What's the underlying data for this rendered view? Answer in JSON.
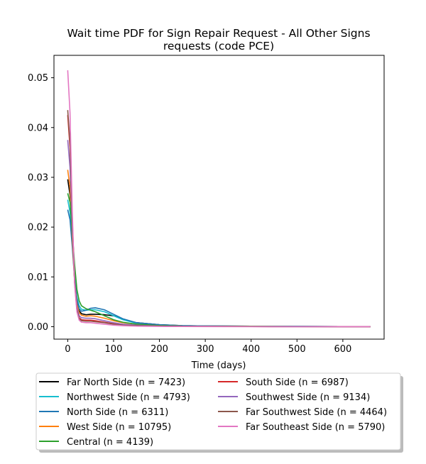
{
  "chart_data": {
    "type": "line",
    "title_line1": "Wait time PDF for Sign Repair Request - All Other Signs",
    "title_line2": "requests (code PCE)",
    "xlabel": "Time (days)",
    "ylabel": "",
    "xlim": [
      -30,
      690
    ],
    "ylim": [
      -0.0025,
      0.0545
    ],
    "x_ticks": [
      0,
      100,
      200,
      300,
      400,
      500,
      600
    ],
    "y_ticks": [
      0.0,
      0.01,
      0.02,
      0.03,
      0.04,
      0.05
    ],
    "x_tick_labels": [
      "0",
      "100",
      "200",
      "300",
      "400",
      "500",
      "600"
    ],
    "y_tick_labels": [
      "0.00",
      "0.01",
      "0.02",
      "0.03",
      "0.04",
      "0.05"
    ],
    "grid": false,
    "legend_position": "below plot, two columns",
    "series": [
      {
        "name": "Far North Side (n = 7423)",
        "color": "#000000",
        "x": [
          0,
          5,
          10,
          15,
          20,
          25,
          30,
          40,
          50,
          60,
          80,
          100,
          120,
          150,
          200,
          250,
          300,
          400,
          500,
          660
        ],
        "y": [
          0.0296,
          0.0265,
          0.018,
          0.01,
          0.005,
          0.0032,
          0.0026,
          0.0024,
          0.0025,
          0.0025,
          0.0024,
          0.0022,
          0.0015,
          0.0008,
          0.0004,
          0.0002,
          0.00015,
          0.0001,
          5e-05,
          0.0
        ]
      },
      {
        "name": "Northwest Side (n = 4793)",
        "color": "#17becf",
        "x": [
          0,
          5,
          10,
          15,
          20,
          25,
          30,
          40,
          50,
          60,
          80,
          100,
          120,
          150,
          200,
          250,
          300,
          400,
          500,
          660
        ],
        "y": [
          0.0255,
          0.023,
          0.017,
          0.01,
          0.006,
          0.0042,
          0.0035,
          0.0033,
          0.0034,
          0.0034,
          0.003,
          0.0022,
          0.0014,
          0.0007,
          0.0003,
          0.0002,
          0.00012,
          0.0001,
          5e-05,
          0.0
        ]
      },
      {
        "name": "North Side (n = 6311)",
        "color": "#1f77b4",
        "x": [
          0,
          5,
          10,
          15,
          20,
          25,
          30,
          40,
          50,
          60,
          80,
          100,
          120,
          150,
          200,
          250,
          300,
          400,
          500,
          660
        ],
        "y": [
          0.0235,
          0.0215,
          0.016,
          0.0095,
          0.0055,
          0.0036,
          0.0031,
          0.0033,
          0.0037,
          0.0038,
          0.0034,
          0.0025,
          0.0016,
          0.0008,
          0.0004,
          0.0002,
          0.00015,
          0.0001,
          5e-05,
          0.0
        ]
      },
      {
        "name": "West Side (n = 10795)",
        "color": "#ff7f0e",
        "x": [
          0,
          5,
          10,
          15,
          20,
          25,
          30,
          40,
          50,
          60,
          80,
          100,
          120,
          150,
          200,
          250,
          300,
          400,
          500,
          660
        ],
        "y": [
          0.0315,
          0.028,
          0.018,
          0.009,
          0.0045,
          0.0028,
          0.0023,
          0.0021,
          0.0022,
          0.0021,
          0.0017,
          0.0012,
          0.0008,
          0.0005,
          0.0002,
          0.0001,
          0.0001,
          5e-05,
          3e-05,
          0.0
        ]
      },
      {
        "name": "Central (n = 4139)",
        "color": "#2ca02c",
        "x": [
          0,
          5,
          10,
          15,
          20,
          25,
          30,
          40,
          50,
          60,
          80,
          100,
          120,
          150,
          200,
          250,
          300,
          400,
          500,
          660
        ],
        "y": [
          0.0268,
          0.025,
          0.019,
          0.0125,
          0.0075,
          0.0052,
          0.0042,
          0.0036,
          0.0033,
          0.003,
          0.0022,
          0.0014,
          0.0009,
          0.0005,
          0.0002,
          0.0001,
          0.0001,
          5e-05,
          3e-05,
          0.0
        ]
      },
      {
        "name": "South Side (n = 6987)",
        "color": "#d62728",
        "x": [
          0,
          5,
          10,
          15,
          20,
          25,
          30,
          40,
          50,
          60,
          80,
          100,
          120,
          150,
          200,
          250,
          300,
          400,
          500,
          660
        ],
        "y": [
          0.0425,
          0.036,
          0.021,
          0.009,
          0.0035,
          0.0018,
          0.0014,
          0.0013,
          0.0013,
          0.0012,
          0.0009,
          0.0006,
          0.0004,
          0.0002,
          0.0001,
          5e-05,
          5e-05,
          3e-05,
          2e-05,
          0.0
        ]
      },
      {
        "name": "Southwest Side (n = 9134)",
        "color": "#9467bd",
        "x": [
          0,
          5,
          10,
          15,
          20,
          25,
          30,
          40,
          50,
          60,
          80,
          100,
          120,
          150,
          200,
          250,
          300,
          400,
          500,
          660
        ],
        "y": [
          0.0375,
          0.032,
          0.02,
          0.0095,
          0.004,
          0.0022,
          0.0018,
          0.0017,
          0.0017,
          0.0016,
          0.0012,
          0.0008,
          0.0005,
          0.0003,
          0.0001,
          5e-05,
          5e-05,
          3e-05,
          2e-05,
          0.0
        ]
      },
      {
        "name": "Far Southwest Side (n = 4464)",
        "color": "#8c564b",
        "x": [
          0,
          5,
          10,
          15,
          20,
          25,
          30,
          40,
          50,
          60,
          80,
          100,
          120,
          150,
          200,
          250,
          300,
          400,
          500,
          660
        ],
        "y": [
          0.0435,
          0.037,
          0.0215,
          0.009,
          0.0035,
          0.0016,
          0.0012,
          0.0011,
          0.0011,
          0.001,
          0.0008,
          0.0005,
          0.0003,
          0.0002,
          0.0001,
          5e-05,
          5e-05,
          3e-05,
          2e-05,
          0.0
        ]
      },
      {
        "name": "Far Southeast Side (n = 5790)",
        "color": "#e377c2",
        "x": [
          0,
          5,
          10,
          15,
          20,
          25,
          30,
          40,
          50,
          60,
          80,
          100,
          120,
          150,
          200,
          250,
          300,
          400,
          500,
          660
        ],
        "y": [
          0.0515,
          0.043,
          0.023,
          0.0085,
          0.003,
          0.0013,
          0.0009,
          0.0008,
          0.0008,
          0.0007,
          0.0005,
          0.0003,
          0.0002,
          0.0001,
          5e-05,
          3e-05,
          2e-05,
          1e-05,
          1e-05,
          0.0
        ]
      }
    ]
  }
}
